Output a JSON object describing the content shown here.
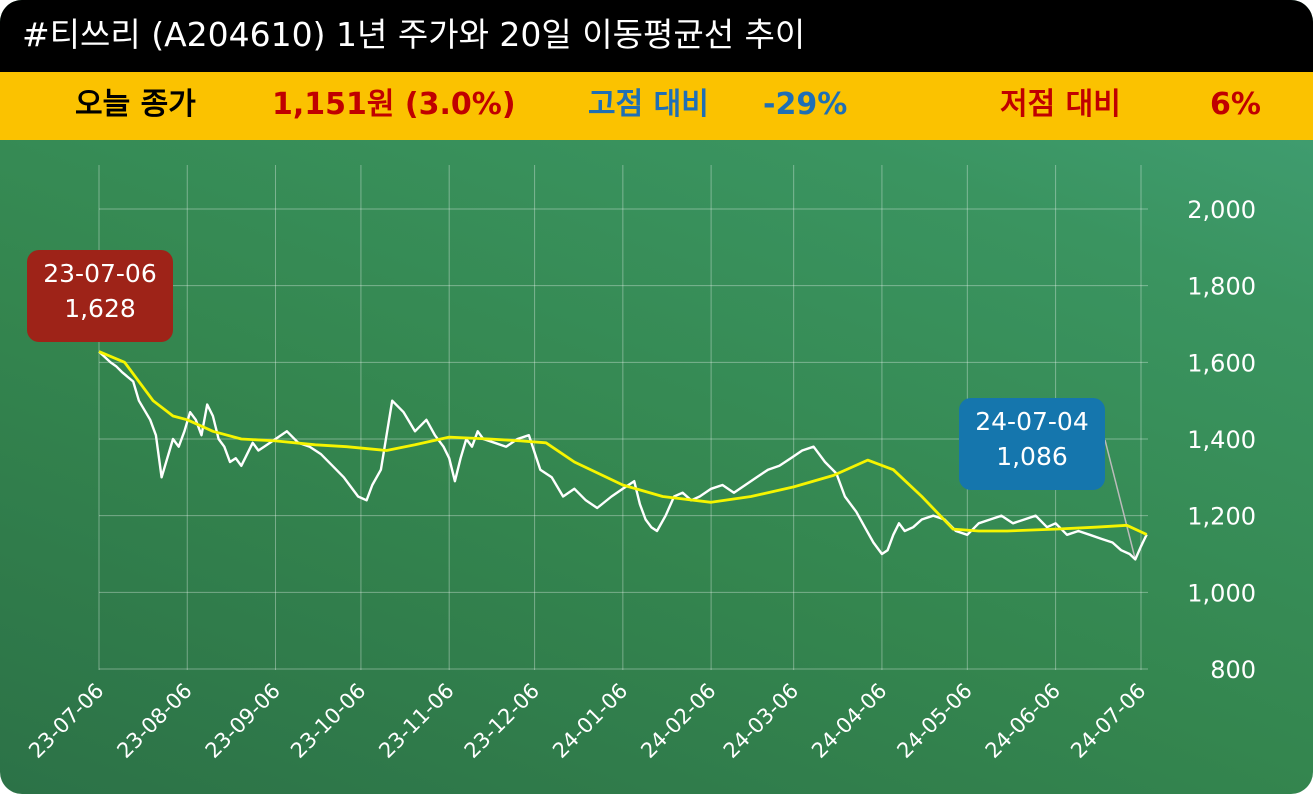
{
  "header": {
    "title": "#티쓰리 (A204610) 1년 주가와 20일 이동평균선 추이"
  },
  "stats": {
    "close_label": "오늘 종가",
    "close_value": "1,151원 (3.0%)",
    "high_label": "고점 대비",
    "high_value": "-29%",
    "low_label": "저점 대비",
    "low_value": "6%"
  },
  "colors": {
    "title_bg": "#000000",
    "stat_bg": "#fbc200",
    "close_value": "#c00000",
    "high": "#1f6fb5",
    "low": "#c00000",
    "price_line": "#ffffff",
    "ma_line": "#f5f500",
    "high_callout": "#9e2318",
    "low_callout": "#1576ad"
  },
  "callouts": {
    "high": {
      "date": "23-07-06",
      "value": "1,628"
    },
    "low": {
      "date": "24-07-04",
      "value": "1,086"
    }
  },
  "chart_data": {
    "type": "line",
    "title": "",
    "xlabel": "",
    "ylabel": "",
    "ylim": [
      800,
      2100
    ],
    "yticks": [
      800,
      1000,
      1200,
      1400,
      1600,
      1800,
      2000
    ],
    "ytick_labels": [
      "800",
      "1,000",
      "1,200",
      "1,400",
      "1,600",
      "1,800",
      "2,000"
    ],
    "x_categories": [
      "23-07-06",
      "23-08-06",
      "23-09-06",
      "23-10-06",
      "23-11-06",
      "23-12-06",
      "24-01-06",
      "24-02-06",
      "24-03-06",
      "24-04-06",
      "24-05-06",
      "24-06-06",
      "24-07-06"
    ],
    "grid": true,
    "series": [
      {
        "name": "",
        "role": "price",
        "x": [
          "23-07-06",
          "23-07-10",
          "23-07-12",
          "23-07-14",
          "23-07-18",
          "23-07-20",
          "23-07-24",
          "23-07-26",
          "23-07-28",
          "23-08-01",
          "23-08-03",
          "23-08-05",
          "23-08-07",
          "23-08-09",
          "23-08-11",
          "23-08-13",
          "23-08-15",
          "23-08-17",
          "23-08-19",
          "23-08-21",
          "23-08-23",
          "23-08-25",
          "23-08-27",
          "23-08-29",
          "23-08-31",
          "23-09-02",
          "23-09-06",
          "23-09-10",
          "23-09-14",
          "23-09-18",
          "23-09-22",
          "23-09-26",
          "23-09-30",
          "23-10-02",
          "23-10-05",
          "23-10-08",
          "23-10-10",
          "23-10-13",
          "23-10-17",
          "23-10-21",
          "23-10-25",
          "23-10-29",
          "23-11-01",
          "23-11-04",
          "23-11-06",
          "23-11-08",
          "23-11-10",
          "23-11-12",
          "23-11-14",
          "23-11-16",
          "23-11-18",
          "23-11-22",
          "23-11-26",
          "23-11-30",
          "23-12-04",
          "23-12-08",
          "23-12-12",
          "23-12-16",
          "23-12-20",
          "23-12-24",
          "23-12-28",
          "24-01-02",
          "24-01-06",
          "24-01-10",
          "24-01-12",
          "24-01-14",
          "24-01-16",
          "24-01-18",
          "24-01-21",
          "24-01-24",
          "24-01-27",
          "24-01-30",
          "24-02-02",
          "24-02-06",
          "24-02-10",
          "24-02-14",
          "24-02-18",
          "24-02-22",
          "24-02-26",
          "24-03-01",
          "24-03-05",
          "24-03-09",
          "24-03-13",
          "24-03-17",
          "24-03-21",
          "24-03-24",
          "24-03-26",
          "24-03-28",
          "24-03-31",
          "24-04-03",
          "24-04-06",
          "24-04-08",
          "24-04-10",
          "24-04-12",
          "24-04-14",
          "24-04-17",
          "24-04-20",
          "24-04-24",
          "24-04-28",
          "24-05-02",
          "24-05-06",
          "24-05-10",
          "24-05-14",
          "24-05-18",
          "24-05-22",
          "24-05-26",
          "24-05-30",
          "24-06-03",
          "24-06-06",
          "24-06-10",
          "24-06-14",
          "24-06-18",
          "24-06-22",
          "24-06-26",
          "24-06-29",
          "24-07-02",
          "24-07-04",
          "24-07-06",
          "24-07-08"
        ],
        "values": [
          1628,
          1600,
          1590,
          1575,
          1550,
          1500,
          1450,
          1410,
          1300,
          1400,
          1380,
          1420,
          1470,
          1450,
          1410,
          1490,
          1460,
          1400,
          1380,
          1340,
          1350,
          1330,
          1360,
          1390,
          1370,
          1380,
          1400,
          1420,
          1390,
          1380,
          1360,
          1330,
          1300,
          1280,
          1250,
          1240,
          1280,
          1320,
          1500,
          1470,
          1420,
          1450,
          1410,
          1380,
          1350,
          1290,
          1350,
          1400,
          1380,
          1420,
          1400,
          1390,
          1380,
          1400,
          1410,
          1320,
          1300,
          1250,
          1270,
          1240,
          1220,
          1250,
          1270,
          1290,
          1230,
          1190,
          1170,
          1160,
          1200,
          1250,
          1260,
          1240,
          1250,
          1270,
          1280,
          1260,
          1280,
          1300,
          1320,
          1330,
          1350,
          1370,
          1380,
          1340,
          1310,
          1250,
          1230,
          1210,
          1170,
          1130,
          1100,
          1110,
          1150,
          1180,
          1160,
          1170,
          1190,
          1200,
          1190,
          1160,
          1150,
          1180,
          1190,
          1200,
          1180,
          1190,
          1200,
          1170,
          1180,
          1150,
          1160,
          1150,
          1140,
          1130,
          1110,
          1100,
          1086,
          1120,
          1151
        ]
      },
      {
        "name": "",
        "role": "ma20",
        "x": [
          "23-07-06",
          "23-07-15",
          "23-07-25",
          "23-08-01",
          "23-08-06",
          "23-08-15",
          "23-08-25",
          "23-09-06",
          "23-09-20",
          "23-10-01",
          "23-10-15",
          "23-10-25",
          "23-11-06",
          "23-11-20",
          "23-12-01",
          "23-12-10",
          "23-12-20",
          "24-01-06",
          "24-01-20",
          "24-02-06",
          "24-02-20",
          "24-03-06",
          "24-03-20",
          "24-04-01",
          "24-04-10",
          "24-04-20",
          "24-05-01",
          "24-05-10",
          "24-05-20",
          "24-06-06",
          "24-06-20",
          "24-07-01",
          "24-07-08"
        ],
        "values": [
          1628,
          1600,
          1500,
          1460,
          1450,
          1420,
          1400,
          1395,
          1385,
          1380,
          1370,
          1385,
          1405,
          1400,
          1395,
          1390,
          1340,
          1280,
          1250,
          1235,
          1250,
          1275,
          1305,
          1345,
          1320,
          1250,
          1165,
          1160,
          1160,
          1165,
          1170,
          1175,
          1151
        ]
      }
    ]
  }
}
